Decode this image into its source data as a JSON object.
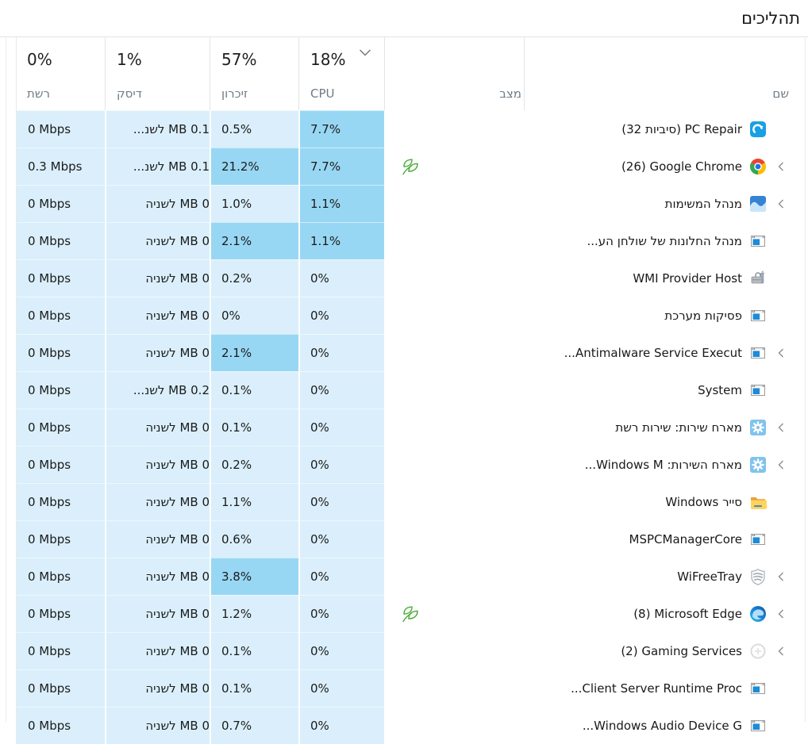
{
  "title": "תהליכים",
  "columns": {
    "name": {
      "label": "שם"
    },
    "status": {
      "label": "מצב"
    },
    "cpu": {
      "label": "CPU",
      "total": "18%"
    },
    "memory": {
      "label": "זיכרון",
      "total": "57%"
    },
    "disk": {
      "label": "דיסק",
      "total": "1%"
    },
    "network": {
      "label": "רשת",
      "total": "0%"
    }
  },
  "sort": {
    "column": "cpu",
    "indicator": "chevron-down-icon"
  },
  "colors": {
    "cell_light": "#daeffb",
    "cell_hot": "#98d7f3",
    "header_label": "#6e7b85",
    "text": "#1b1b1b",
    "eco_leaf_green": "#49a83c"
  },
  "rows": [
    {
      "name": "(32 סיביות) PC Repair",
      "name_logical": "PC Repair (32 סיביות)",
      "name_dir": "ltr",
      "name_visual": "(32 סיביות) PC Repair",
      "icon": "pc-repair",
      "expandable": false,
      "status": "",
      "cpu": "7.7%",
      "cpu_hot": true,
      "memory": "0.5%",
      "memory_hot": false,
      "disk": "0.1 MB לשנ...",
      "network": "0 Mbps"
    },
    {
      "name": "(26) Google Chrome",
      "name_dir": "ltr",
      "name_visual": "(26) Google Chrome",
      "icon": "chrome",
      "expandable": true,
      "status": "eco",
      "cpu": "7.7%",
      "cpu_hot": true,
      "memory": "21.2%",
      "memory_hot": true,
      "disk": "0.1 MB לשנ...",
      "network": "0.3 Mbps"
    },
    {
      "name": "מנהל המשימות",
      "name_dir": "rtl",
      "name_visual": "מנהל המשימות",
      "icon": "taskmgr",
      "expandable": true,
      "status": "",
      "cpu": "1.1%",
      "cpu_hot": true,
      "memory": "1.0%",
      "memory_hot": false,
      "disk": "0 MB לשניה",
      "network": "0 Mbps"
    },
    {
      "name": "מנהל החלונות של שולחן הע...",
      "name_dir": "rtl",
      "name_visual": "מנהל החלונות של שולחן הע...",
      "icon": "window",
      "expandable": false,
      "status": "",
      "cpu": "1.1%",
      "cpu_hot": true,
      "memory": "2.1%",
      "memory_hot": true,
      "disk": "0 MB לשניה",
      "network": "0 Mbps"
    },
    {
      "name": "WMI Provider Host",
      "name_dir": "ltr",
      "name_visual": "WMI Provider Host",
      "icon": "toolbox",
      "expandable": false,
      "status": "",
      "cpu": "0%",
      "cpu_hot": false,
      "memory": "0.2%",
      "memory_hot": false,
      "disk": "0 MB לשניה",
      "network": "0 Mbps"
    },
    {
      "name": "פסיקות מערכת",
      "name_dir": "rtl",
      "name_visual": "פסיקות מערכת",
      "icon": "window",
      "expandable": false,
      "status": "",
      "cpu": "0%",
      "cpu_hot": false,
      "memory": "0%",
      "memory_hot": false,
      "disk": "0 MB לשניה",
      "network": "0 Mbps"
    },
    {
      "name": "...Antimalware Service Execut",
      "name_dir": "ltr",
      "name_visual": "...Antimalware Service Execut",
      "icon": "window",
      "expandable": true,
      "status": "",
      "cpu": "0%",
      "cpu_hot": false,
      "memory": "2.1%",
      "memory_hot": true,
      "disk": "0 MB לשניה",
      "network": "0 Mbps"
    },
    {
      "name": "System",
      "name_dir": "ltr",
      "name_visual": "System",
      "icon": "window",
      "expandable": false,
      "status": "",
      "cpu": "0%",
      "cpu_hot": false,
      "memory": "0.1%",
      "memory_hot": false,
      "disk": "0.2 MB לשנ...",
      "network": "0 Mbps"
    },
    {
      "name": "מארח שירות: שירות רשת",
      "name_dir": "rtl",
      "name_visual": "מארח שירות: שירות רשת",
      "icon": "gear",
      "expandable": true,
      "status": "",
      "cpu": "0%",
      "cpu_hot": false,
      "memory": "0.1%",
      "memory_hot": false,
      "disk": "0 MB לשניה",
      "network": "0 Mbps"
    },
    {
      "name": "מארח השירות: Windows M...",
      "name_dir": "rtl",
      "name_visual": "...Windows M :מארח השירות",
      "icon": "gear",
      "expandable": true,
      "status": "",
      "cpu": "0%",
      "cpu_hot": false,
      "memory": "0.2%",
      "memory_hot": false,
      "disk": "0 MB לשניה",
      "network": "0 Mbps"
    },
    {
      "name": "סייר Windows",
      "name_dir": "rtl",
      "name_visual": "Windows סייר",
      "icon": "folder",
      "expandable": false,
      "status": "",
      "cpu": "0%",
      "cpu_hot": false,
      "memory": "1.1%",
      "memory_hot": false,
      "disk": "0 MB לשניה",
      "network": "0 Mbps"
    },
    {
      "name": "MSPCManagerCore",
      "name_dir": "ltr",
      "name_visual": "MSPCManagerCore",
      "icon": "window",
      "expandable": false,
      "status": "",
      "cpu": "0%",
      "cpu_hot": false,
      "memory": "0.6%",
      "memory_hot": false,
      "disk": "0 MB לשניה",
      "network": "0 Mbps"
    },
    {
      "name": "WiFreeTray",
      "name_dir": "ltr",
      "name_visual": "WiFreeTray",
      "icon": "shield",
      "expandable": true,
      "status": "",
      "cpu": "0%",
      "cpu_hot": false,
      "memory": "3.8%",
      "memory_hot": true,
      "disk": "0 MB לשניה",
      "network": "0 Mbps"
    },
    {
      "name": "(8) Microsoft Edge",
      "name_dir": "ltr",
      "name_visual": "(8) Microsoft Edge",
      "icon": "edge",
      "expandable": true,
      "status": "eco",
      "cpu": "0%",
      "cpu_hot": false,
      "memory": "1.2%",
      "memory_hot": false,
      "disk": "0 MB לשניה",
      "network": "0 Mbps"
    },
    {
      "name": "(2) Gaming Services",
      "name_dir": "ltr",
      "name_visual": "(2) Gaming Services",
      "icon": "faint",
      "expandable": true,
      "status": "",
      "cpu": "0%",
      "cpu_hot": false,
      "memory": "0.1%",
      "memory_hot": false,
      "disk": "0 MB לשניה",
      "network": "0 Mbps"
    },
    {
      "name": "...Client Server Runtime Proc",
      "name_dir": "ltr",
      "name_visual": "...Client Server Runtime Proc",
      "icon": "window",
      "expandable": false,
      "status": "",
      "cpu": "0%",
      "cpu_hot": false,
      "memory": "0.1%",
      "memory_hot": false,
      "disk": "0 MB לשניה",
      "network": "0 Mbps"
    },
    {
      "name": "...Windows Audio Device G",
      "name_dir": "ltr",
      "name_visual": "...Windows Audio Device G",
      "icon": "window",
      "expandable": false,
      "status": "",
      "cpu": "0%",
      "cpu_hot": false,
      "memory": "0.7%",
      "memory_hot": false,
      "disk": "0 MB לשניה",
      "network": "0 Mbps"
    }
  ]
}
